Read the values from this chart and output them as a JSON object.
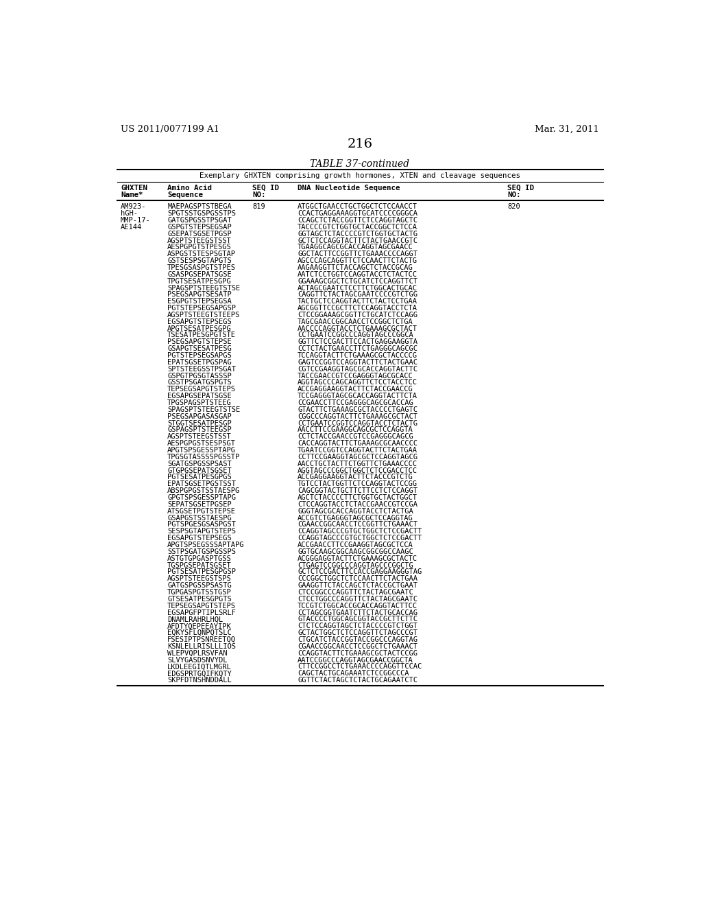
{
  "header_left": "US 2011/0077199 A1",
  "header_right": "Mar. 31, 2011",
  "page_number": "216",
  "table_title": "TABLE 37-continued",
  "table_subtitle": "Exemplary GHXTEN comprising growth hormones, XTEN and cleavage sequences",
  "entry_names": [
    "AM923-",
    "hGH-",
    "MMP-17-",
    "AE144"
  ],
  "seq_id_left": "819",
  "seq_id_right": "820",
  "amino_acids": [
    "MAEPAGSPTSTBEGA",
    "SPGTSSTGSPGSSTPS",
    "GATGSPGSSTPSGAT",
    "GSPGTSTEPSEGSAP",
    "GSEPATSGSETPGSP",
    "AGSPTSTEEGSTSST",
    "AESPGPGTSTPESGS",
    "ASPGSTSTESPSGTAP",
    "GSTSESPSGTAPGTS",
    "TPESGSASPGTSTPES",
    "GSASPGSEPATSGSE",
    "TPGTSESATPESGPG",
    "SPAGSPTSTEEGTSTSE",
    "PSEGSAPGTSESATP",
    "ESGPGTSTEPSEGSA",
    "PGTSTEPSEGSAPGSP",
    "AGSPTSTEEGTSTEEPS",
    "EGSAPGTSTEPSEGS",
    "APGTSESATPESGPG",
    "TSESATPESGPGTSTE",
    "PSEGSAPGTSTEPSE",
    "GSAPGTSESATPESG",
    "PGTSTEPSEGSAPGS",
    "EPATSGSETPGSPAG",
    "SPTSTEEGSSTPSGAT",
    "GSPGTPGSGTASSSP",
    "GSSTPSGATGSPGTS",
    "TEPSEGSAPGTSTEPS",
    "EGSAPGSEPATSGSE",
    "TPGSPAGSPTSTEEG",
    "SPAGSPTSTEEGTSTSE",
    "PSEGSAPGASASGAP",
    "STGGTSESATPESGP",
    "GSPAGSPTSTEEGSP",
    "AGSPTSTEEGSTSST",
    "AESPGPGSTSESPSGT",
    "APGTSPSGESSPTAPG",
    "TPGSGTASSSSPGSSTP",
    "SGATGSPGSSPSAST",
    "GTGPGSEPATSGSET",
    "PGTSESATPESGPGS",
    "EPATSGSETPGSTSST",
    "ABSPGPGSTSSTAESPG",
    "GPGTSPSGESSPTAPG",
    "SEPATSGSETPGSEP",
    "ATSGSETPGTSTEPSE",
    "GSAPGSTSSTAESPG",
    "PGTSPGESGSASPGST",
    "SESPSGTAPGTSTEPS",
    "EGSAPGTSTEPSEGS",
    "APGTSPSEGSSSAPTAPG",
    "SSTPSGATGSPGSSPS",
    "ASTGTGPGASPTGSS",
    "TGSPGSEPATSGSET",
    "PGTSESATPESGPGSP",
    "AGSPTSTEEGSTSPS",
    "GATGSPGSSPSASTG",
    "TGPGASPGTSSTGSP",
    "GTSESATPESGPGTS",
    "TEPSEGSAPGTSTEPS",
    "EGSAPGFPTIPLSRLF",
    "DNAMLRAHRLHQL",
    "AFDTYQEPEEAYIPK",
    "EQKYSFLQNPQTSLC",
    "FSESIPTPSNREETQQ",
    "KSNLELLRISLLLIOS",
    "WLEPVQPLRSVFAN",
    "SLVYGASDSNVYDL",
    "LKDLEEGIQTLMGRL",
    "EDGSPRTGQIFKQTY",
    "SKPFDTNSHNDDALL"
  ],
  "dna_sequences": [
    "ATGGCTGAACCTGCTGGCTCTCCAACCT",
    "CCACTGAGGAAAGGTGCATCCCCGGGCA",
    "CCAGCTCTACCGGTTCTCCAGGTAGCTC",
    "TACCCCGTCTGGTGCTACCGGCTCTCCA",
    "GGTAGCTCTACCCCGTCTGGTGCTACTG",
    "GCTCTCCAGGTACTTCTACTGAACCGTC",
    "TGAAGGCAGCGCACCAGGTAGCGAACC",
    "GGCTACTTCCGGTTCTGAAACCCCAGGT",
    "AGCCCAGCAGGTTCTCCAACTTCTACTG",
    "AAGAAGGTTCTACCAGCTCTACCGCAG",
    "AATCTCCTGGTCCAGGTACCTCTACTCC",
    "GGAAAGCGGCTCTGCATCTCCAGGTTCT",
    "ACTAGCGAATCTCCTTCTGGCACTGCAC",
    "CAGGTTCTACTAGCGAATCCCCGTCTGG",
    "TACTGCTCCAGGTACTTCTACTCCTGAA",
    "AGCGGTTCCGCTTCTCCAGGTACCTCTA",
    "CTCCGGAAAGCGGTTCTGCATCTCCAGG",
    "TAGCGAACCGGCAACCTCCGGCTCTGA",
    "AACCCCAGGTACCTCTGAAAGCGCTACT",
    "CCTGAATCCGGCCCAGGTAGCCCGGCA",
    "GGTTCTCCGACTTCCACTGAGGAAGGTA",
    "CCTCTACTGAACCTTCTGAGGGCAGCGC",
    "TCCAGGTACTTCTGAAAGCGCTACCCCG",
    "GAGTCCGGTCCAGGTACTTCTACTGAAC",
    "CGTCCGAAGGTAGCGCACCAGGTACTTC",
    "TACCGAACCGTCCGAGGGTAGCGCACC",
    "AGGTAGCCCAGCAGGTTCTCCTACCTCC",
    "ACCGAGGAAGGTACTTCTACCGAACCG",
    "TCCGAGGGTAGCGCACCAGGTACTTCTA",
    "CCGAACCTTCCGAGGGCAGCGCACCAG",
    "GTACTTCTGAAAGCGCTACCCCTGAGTC",
    "CGGCCCAGGTACTTCTGAAAGCGCTACT",
    "CCTGAATCCGGTCCAGGTACCTCTACTG",
    "AACCTTCCGAAGGCAGCGCTCCAGGTA",
    "CCTCTACCGAACCGTCCGAGGGCAGCG",
    "CACCAGGTACTTCTGAAAGCGCAACCCC",
    "TGAATCCGGTCCAGGTACTTCTACTGAA",
    "CCTTCCGAAGGTAGCGCTCCAGGTAGCG",
    "AACCTGCTACTTCTGGTTCTGAAACCCC",
    "AGGTAGCCCGGCTGGCTCTCCGACCTCC",
    "ACCGAGGAAGGTACTTCTACCCGTCTG",
    "TGTCCTACTGGTTCTCCAGGTACTCCGG",
    "CAGCGGTACTGCTTCTTCCTCTCCAGGT",
    "AGCTCTACCCCTTCTGGTGCTACTGGCT",
    "CTCCAGGTACCTCTACCGAACCGTCCGA",
    "GGGTAGCGCACCAGGTACCTCTACTGA",
    "ACCGTCTGAGGGTAGCGCTCCAGGTAG",
    "CGAACCGGCAACCTCCGGTTCTGAAACT",
    "CCAGGTAGCCCGTGCTGGCTCTCCGACTT",
    "CCAGGTAGCCCGTGCTGGCTCTCCGACTT",
    "ACCGAACCTTCCGAAGGTAGCGCTCCA",
    "GGTGCAAGCGGCAAGCGGCGGCCAAGC",
    "ACGGGAGGTACTTCTGAAAGCGCTACTC",
    "CTGAGTCCGGCCCAGGTAGCCCGGCTG",
    "GCTCTCCGACTTCCACCGAGGAAGGGTAG",
    "CCCGGCTGGCTCTCCAACTTCTACTGAA",
    "GAAGGTTCTACCAGCTCTACCGCTGAAT",
    "CTCCGGCCCAGGTTCTACTAGCGAATC",
    "CTCCTGGCCCAGGTTCTACTAGCGAATC",
    "TCCGTCTGGCACCGCACCAGGTACTTCC",
    "CCTAGCGGTGAATCTTCTACTGCACCAG",
    "GTACCCCTGGCAGCGGTACCGCTTCTTC",
    "CTCTCCAGGTAGCTCTACCCCGTCTGGT",
    "GCTACTGGCTCTCCAGGTTCTAGCCCGT",
    "CTGCATCTACCGGTACCGGCCCAGGTAG",
    "CGAACCGGCAACCTCCGGCTCTGAAACT",
    "CCAGGTACTTCTGAAAGCGCTACTCCGG",
    "AATCCGGCCCAGGTAGCGAACCGGCTA",
    "CTTCCGGCCTCTGAAACCCCAGGTTCCAC",
    "CAGCTACTGCAGAAATCTCCGGCCCA",
    "GGTTCTACTAGCTCTACTGCAGAATCTC"
  ],
  "background_color": "#ffffff",
  "text_color": "#000000"
}
